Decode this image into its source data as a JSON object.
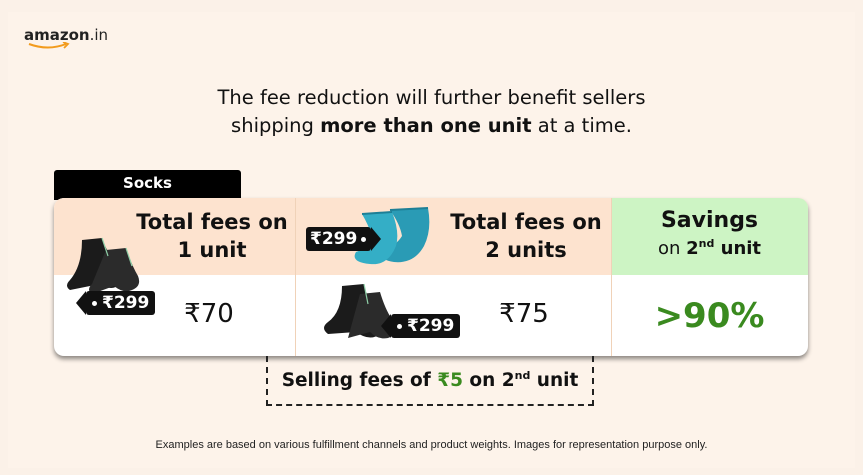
{
  "brand": {
    "logo_main": "amazon",
    "logo_suffix": ".in"
  },
  "headline": {
    "line1": "The fee reduction will further benefit sellers",
    "line2_pre": "shipping ",
    "line2_bold": "more than one unit",
    "line2_post": " at a time."
  },
  "category_tab": "Socks",
  "columns": {
    "one_unit": {
      "heading_line1": "Total fees on",
      "heading_line2": "1 unit",
      "fee": "₹70",
      "price_tag": "₹299"
    },
    "two_units": {
      "heading_line1": "Total fees on",
      "heading_line2": "2 units",
      "fee": "₹75",
      "price_tag_top": "₹299",
      "price_tag_bottom": "₹299"
    },
    "savings": {
      "title": "Savings",
      "sub_pre": "on ",
      "sub_num": "2",
      "sub_sup": "nd",
      "sub_post": " unit",
      "value": ">90%"
    }
  },
  "selling_fee": {
    "pre": "Selling fees of ",
    "amount": "₹5",
    "mid": " on ",
    "num": "2",
    "sup": "nd",
    "post": " unit"
  },
  "footnote": "Examples are based on various fulfillment channels and product weights. Images for representation purpose only.",
  "colors": {
    "peach": "#fde3cf",
    "mint": "#cdf4c4",
    "green": "#3a8a1f",
    "sock_teal": "#2a9bb5",
    "sock_black": "#1b1b1b"
  },
  "icons": [
    "amazon-smile-arrow",
    "black-sock",
    "teal-sock",
    "price-tag"
  ]
}
